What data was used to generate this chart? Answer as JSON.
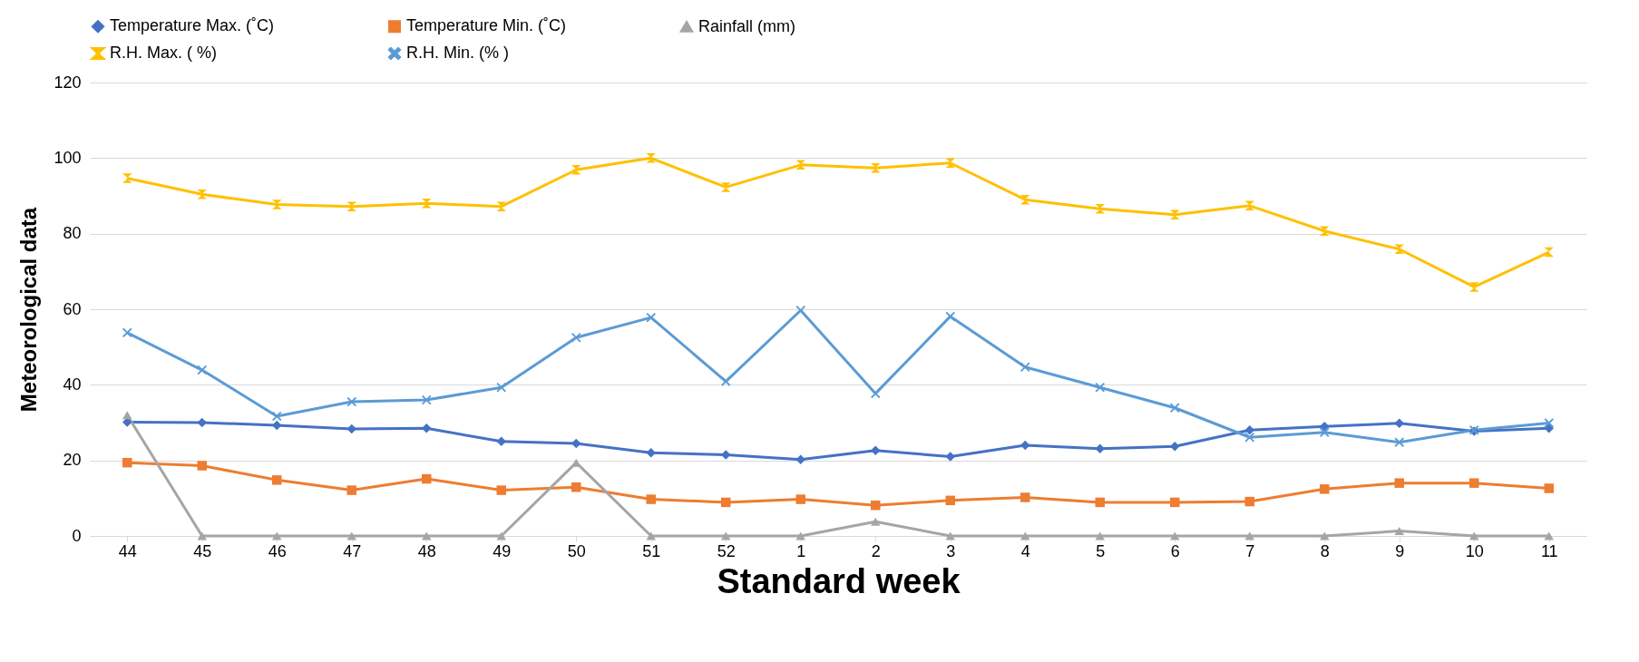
{
  "chart_data": {
    "type": "line",
    "xlabel": "Standard week",
    "ylabel": "Meteorological data",
    "categories": [
      "44",
      "45",
      "46",
      "47",
      "48",
      "49",
      "50",
      "51",
      "52",
      "1",
      "2",
      "3",
      "4",
      "5",
      "6",
      "7",
      "8",
      "9",
      "10",
      "11"
    ],
    "series": [
      {
        "name": "Temperature Max. (˚C)",
        "color": "#4472c4",
        "marker": "diamond",
        "values": [
          30.1,
          30,
          29.3,
          28.3,
          28.5,
          25,
          24.5,
          22,
          21.5,
          20.2,
          22.6,
          21,
          24,
          23.1,
          23.7,
          28,
          29,
          29.8,
          27.7,
          28.5
        ]
      },
      {
        "name": "Temperature Min. (˚C)",
        "color": "#ed7d31",
        "marker": "square",
        "values": [
          19.4,
          18.6,
          14.8,
          12.1,
          15.1,
          12.1,
          12.9,
          9.7,
          8.9,
          9.7,
          8.1,
          9.4,
          10.2,
          8.9,
          8.9,
          9.1,
          12.4,
          14,
          14,
          12.6
        ]
      },
      {
        "name": "Rainfall (mm)",
        "color": "#a5a5a5",
        "marker": "triangle",
        "values": [
          32,
          0,
          0,
          0,
          0,
          0,
          19.4,
          0,
          0,
          0,
          3.8,
          0,
          0,
          0,
          0,
          0,
          0,
          1.3,
          0,
          0
        ]
      },
      {
        "name": "R.H. Max. ( %)",
        "color": "#ffc000",
        "marker": "star",
        "values": [
          94.7,
          90.4,
          87.7,
          87.2,
          88,
          87.2,
          96.9,
          100,
          92.3,
          98.2,
          97.4,
          98.7,
          89,
          86.6,
          85,
          87.4,
          80.7,
          75.9,
          65.9,
          75.1
        ]
      },
      {
        "name": "R.H. Min. (% )",
        "color": "#5b9bd5",
        "marker": "cross",
        "values": [
          53.8,
          43.9,
          31.7,
          35.5,
          36,
          39.3,
          52.5,
          57.8,
          40.9,
          59.7,
          37.7,
          58.1,
          44.7,
          39.3,
          33.9,
          26.1,
          27.4,
          24.8,
          28,
          29.9
        ]
      }
    ],
    "ylim": [
      0,
      120
    ],
    "yticks": [
      0,
      20,
      40,
      60,
      80,
      100,
      120
    ],
    "grid": "y",
    "legend": "top",
    "line_style": "solid"
  }
}
